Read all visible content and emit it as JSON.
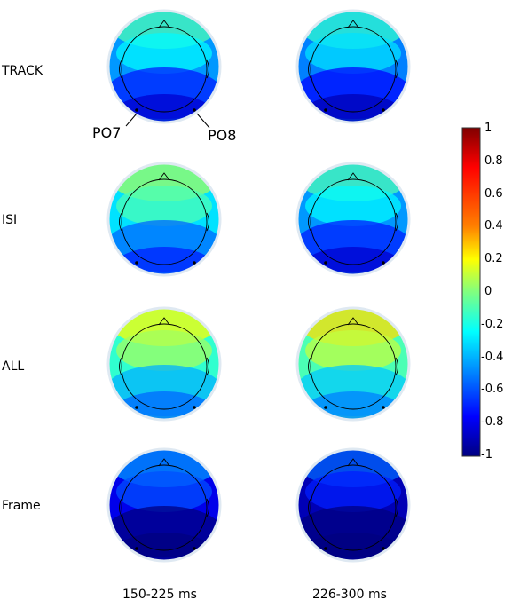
{
  "row_labels": [
    "TRACK",
    "ISI",
    "ALL",
    "Frame"
  ],
  "col_labels": [
    "150-225 ms",
    "226-300 ms"
  ],
  "electrodes": {
    "left": "PO7",
    "right": "PO8"
  },
  "colorbar": {
    "ticks": [
      "1",
      "0.8",
      "0.6",
      "0.4",
      "0.2",
      "0",
      "-0.2",
      "-0.4",
      "-0.6",
      "-0.8",
      "-1"
    ],
    "range": [
      -1,
      1
    ],
    "colormap": "jet"
  },
  "maps": [
    [
      {
        "row": "TRACK",
        "col": "150-225 ms",
        "mean": -0.45
      },
      {
        "row": "TRACK",
        "col": "226-300 ms",
        "mean": -0.5
      }
    ],
    [
      {
        "row": "ISI",
        "col": "150-225 ms",
        "mean": -0.3
      },
      {
        "row": "ISI",
        "col": "226-300 ms",
        "mean": -0.45
      }
    ],
    [
      {
        "row": "ALL",
        "col": "150-225 ms",
        "mean": -0.15
      },
      {
        "row": "ALL",
        "col": "226-300 ms",
        "mean": -0.1
      }
    ],
    [
      {
        "row": "Frame",
        "col": "150-225 ms",
        "mean": -0.8
      },
      {
        "row": "Frame",
        "col": "226-300 ms",
        "mean": -0.9
      }
    ]
  ],
  "colors": {
    "darkred": "#800000",
    "red": "#ff0000",
    "orange": "#ff8000",
    "yellow": "#ffff00",
    "green": "#80ff80",
    "cyan": "#00ffff",
    "blue": "#0080ff",
    "navy": "#000080"
  }
}
